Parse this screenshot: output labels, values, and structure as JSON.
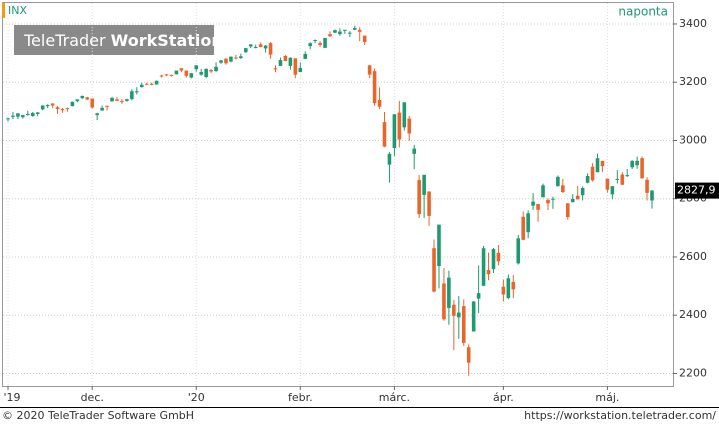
{
  "header": {
    "symbol": "INX",
    "interval": "naponta"
  },
  "logo": {
    "brand": "TeleTrader",
    "product": "WorkStation"
  },
  "footer": {
    "copyright": "© 2020 TeleTrader Software GmbH",
    "url": "https://workstation.teletrader.com/"
  },
  "chart_data": {
    "type": "candlestick",
    "categories": [
      "'19",
      null,
      null,
      null,
      null,
      null,
      null,
      null,
      null,
      null,
      null,
      null,
      null,
      null,
      null,
      null,
      null,
      "dec.",
      null,
      null,
      null,
      null,
      null,
      null,
      null,
      null,
      null,
      null,
      null,
      null,
      null,
      null,
      null,
      null,
      null,
      null,
      null,
      null,
      "'20",
      null,
      null,
      null,
      null,
      null,
      null,
      null,
      null,
      null,
      null,
      null,
      null,
      null,
      null,
      null,
      null,
      null,
      null,
      null,
      null,
      "febr.",
      null,
      null,
      null,
      null,
      null,
      null,
      null,
      null,
      null,
      null,
      null,
      null,
      null,
      null,
      null,
      null,
      null,
      null,
      "márc.",
      null,
      null,
      null,
      null,
      null,
      null,
      null,
      null,
      null,
      null,
      null,
      null,
      null,
      null,
      null,
      null,
      null,
      null,
      null,
      null,
      null,
      "ápr.",
      null,
      null,
      null,
      null,
      null,
      null,
      null,
      null,
      null,
      null,
      null,
      null,
      null,
      null,
      null,
      null,
      null,
      null,
      null,
      null,
      "máj.",
      null,
      null,
      null,
      null,
      null,
      null,
      null,
      null,
      null
    ],
    "ohlc": [
      [
        3075,
        3078,
        3065,
        3076
      ],
      [
        3081,
        3098,
        3074,
        3085
      ],
      [
        3082,
        3094,
        3074,
        3093
      ],
      [
        3080,
        3088,
        3075,
        3087
      ],
      [
        3089,
        3102,
        3085,
        3091
      ],
      [
        3084,
        3098,
        3081,
        3094
      ],
      [
        3091,
        3098,
        3083,
        3096
      ],
      [
        3107,
        3121,
        3104,
        3120
      ],
      [
        3118,
        3124,
        3112,
        3122
      ],
      [
        3127,
        3128,
        3111,
        3120
      ],
      [
        3114,
        3119,
        3091,
        3108
      ],
      [
        3108,
        3111,
        3095,
        3104
      ],
      [
        3111,
        3113,
        3099,
        3110
      ],
      [
        3118,
        3133,
        3117,
        3133
      ],
      [
        3135,
        3142,
        3131,
        3141
      ],
      [
        3145,
        3154,
        3143,
        3153
      ],
      [
        3148,
        3150,
        3139,
        3141
      ],
      [
        3144,
        3144,
        3110,
        3113
      ],
      [
        3087,
        3095,
        3070,
        3093
      ],
      [
        3103,
        3120,
        3102,
        3112
      ],
      [
        3119,
        3120,
        3103,
        3117
      ],
      [
        3134,
        3150,
        3134,
        3146
      ],
      [
        3141,
        3149,
        3135,
        3136
      ],
      [
        3135,
        3143,
        3126,
        3133
      ],
      [
        3136,
        3143,
        3133,
        3142
      ],
      [
        3142,
        3176,
        3138,
        3169
      ],
      [
        3167,
        3183,
        3158,
        3169
      ],
      [
        3183,
        3198,
        3182,
        3191
      ],
      [
        3195,
        3198,
        3191,
        3192
      ],
      [
        3195,
        3198,
        3190,
        3191
      ],
      [
        3192,
        3206,
        3192,
        3205
      ],
      [
        3223,
        3226,
        3216,
        3221
      ],
      [
        3227,
        3228,
        3221,
        3224
      ],
      [
        3225,
        3226,
        3220,
        3223
      ],
      [
        3227,
        3240,
        3227,
        3240
      ],
      [
        3248,
        3248,
        3235,
        3240
      ],
      [
        3240,
        3240,
        3216,
        3222
      ],
      [
        3216,
        3232,
        3213,
        3231
      ],
      [
        3245,
        3258,
        3236,
        3258
      ],
      [
        3226,
        3246,
        3222,
        3235
      ],
      [
        3218,
        3247,
        3214,
        3246
      ],
      [
        3242,
        3245,
        3232,
        3237
      ],
      [
        3238,
        3268,
        3236,
        3253
      ],
      [
        3267,
        3276,
        3263,
        3275
      ],
      [
        3281,
        3282,
        3260,
        3265
      ],
      [
        3271,
        3288,
        3268,
        3288
      ],
      [
        3285,
        3294,
        3278,
        3283
      ],
      [
        3283,
        3298,
        3280,
        3289
      ],
      [
        3303,
        3318,
        3301,
        3317
      ],
      [
        3323,
        3330,
        3317,
        3330
      ],
      [
        3321,
        3329,
        3316,
        3321
      ],
      [
        3330,
        3337,
        3320,
        3321
      ],
      [
        3316,
        3327,
        3302,
        3326
      ],
      [
        3334,
        3338,
        3280,
        3295
      ],
      [
        3248,
        3258,
        3234,
        3244
      ],
      [
        3256,
        3285,
        3256,
        3276
      ],
      [
        3290,
        3293,
        3272,
        3273
      ],
      [
        3256,
        3286,
        3243,
        3284
      ],
      [
        3282,
        3282,
        3214,
        3226
      ],
      [
        3235,
        3268,
        3235,
        3249
      ],
      [
        3280,
        3306,
        3280,
        3297
      ],
      [
        3324,
        3337,
        3313,
        3334
      ],
      [
        3344,
        3347,
        3334,
        3345
      ],
      [
        3335,
        3341,
        3322,
        3328
      ],
      [
        3318,
        3352,
        3317,
        3352
      ],
      [
        3365,
        3375,
        3355,
        3358
      ],
      [
        3370,
        3381,
        3369,
        3379
      ],
      [
        3365,
        3385,
        3360,
        3374
      ],
      [
        3378,
        3380,
        3366,
        3380
      ],
      [
        3369,
        3375,
        3355,
        3370
      ],
      [
        3380,
        3394,
        3379,
        3386
      ],
      [
        3380,
        3389,
        3341,
        3373
      ],
      [
        3360,
        3360,
        3328,
        3338
      ],
      [
        3258,
        3259,
        3214,
        3226
      ],
      [
        3238,
        3247,
        3119,
        3128
      ],
      [
        3139,
        3182,
        3108,
        3116
      ],
      [
        3063,
        3098,
        2977,
        2979
      ],
      [
        2917,
        2960,
        2855,
        2954
      ],
      [
        2974,
        3090,
        2946,
        3090
      ],
      [
        3096,
        3136,
        2976,
        3003
      ],
      [
        3045,
        3131,
        3034,
        3131
      ],
      [
        3075,
        3084,
        2999,
        3024
      ],
      [
        2954,
        2985,
        2901,
        2972
      ],
      [
        2864,
        2882,
        2734,
        2747
      ],
      [
        2813,
        2882,
        2734,
        2882
      ],
      [
        2825,
        2825,
        2707,
        2741
      ],
      [
        2630,
        2660,
        2478,
        2481
      ],
      [
        2569,
        2711,
        2492,
        2711
      ],
      [
        2509,
        2562,
        2381,
        2386
      ],
      [
        2425,
        2553,
        2367,
        2529
      ],
      [
        2436,
        2453,
        2280,
        2398
      ],
      [
        2393,
        2466,
        2319,
        2409
      ],
      [
        2431,
        2454,
        2295,
        2305
      ],
      [
        2290,
        2300,
        2192,
        2237
      ],
      [
        2344,
        2449,
        2344,
        2447
      ],
      [
        2457,
        2571,
        2407,
        2476
      ],
      [
        2501,
        2638,
        2501,
        2630
      ],
      [
        2555,
        2615,
        2520,
        2541
      ],
      [
        2558,
        2631,
        2545,
        2627
      ],
      [
        2614,
        2641,
        2571,
        2585
      ],
      [
        2498,
        2522,
        2447,
        2471
      ],
      [
        2459,
        2540,
        2455,
        2527
      ],
      [
        2514,
        2538,
        2459,
        2489
      ],
      [
        2578,
        2676,
        2574,
        2664
      ],
      [
        2738,
        2756,
        2657,
        2659
      ],
      [
        2685,
        2760,
        2664,
        2750
      ],
      [
        2776,
        2819,
        2762,
        2790
      ],
      [
        2782,
        2782,
        2721,
        2762
      ],
      [
        2805,
        2852,
        2805,
        2846
      ],
      [
        2796,
        2801,
        2761,
        2784
      ],
      [
        2799,
        2807,
        2765,
        2800
      ],
      [
        2843,
        2880,
        2842,
        2875
      ],
      [
        2846,
        2868,
        2820,
        2823
      ],
      [
        2784,
        2785,
        2728,
        2737
      ],
      [
        2788,
        2816,
        2788,
        2799
      ],
      [
        2810,
        2844,
        2797,
        2798
      ],
      [
        2812,
        2842,
        2794,
        2837
      ],
      [
        2855,
        2887,
        2853,
        2878
      ],
      [
        2910,
        2922,
        2859,
        2863
      ],
      [
        2891,
        2955,
        2891,
        2939
      ],
      [
        2930,
        2930,
        2892,
        2912
      ],
      [
        2869,
        2869,
        2821,
        2831
      ],
      [
        2815,
        2844,
        2798,
        2843
      ],
      [
        2868,
        2898,
        2852,
        2868
      ],
      [
        2883,
        2891,
        2847,
        2848
      ],
      [
        2879,
        2902,
        2875,
        2881
      ],
      [
        2908,
        2932,
        2902,
        2930
      ],
      [
        2915,
        2945,
        2903,
        2930
      ],
      [
        2939,
        2945,
        2869,
        2870
      ],
      [
        2865,
        2874,
        2794,
        2820
      ],
      [
        2794,
        2830,
        2766,
        2827.9
      ]
    ],
    "up_color": "#1e9a73",
    "down_color": "#e8662a",
    "last_price": {
      "value": 2827.9,
      "label": "2827,9"
    },
    "ylim": [
      2157,
      3472
    ],
    "yticks": [
      2200,
      2400,
      2600,
      2800,
      3000,
      3200,
      3400
    ],
    "grid": true
  }
}
